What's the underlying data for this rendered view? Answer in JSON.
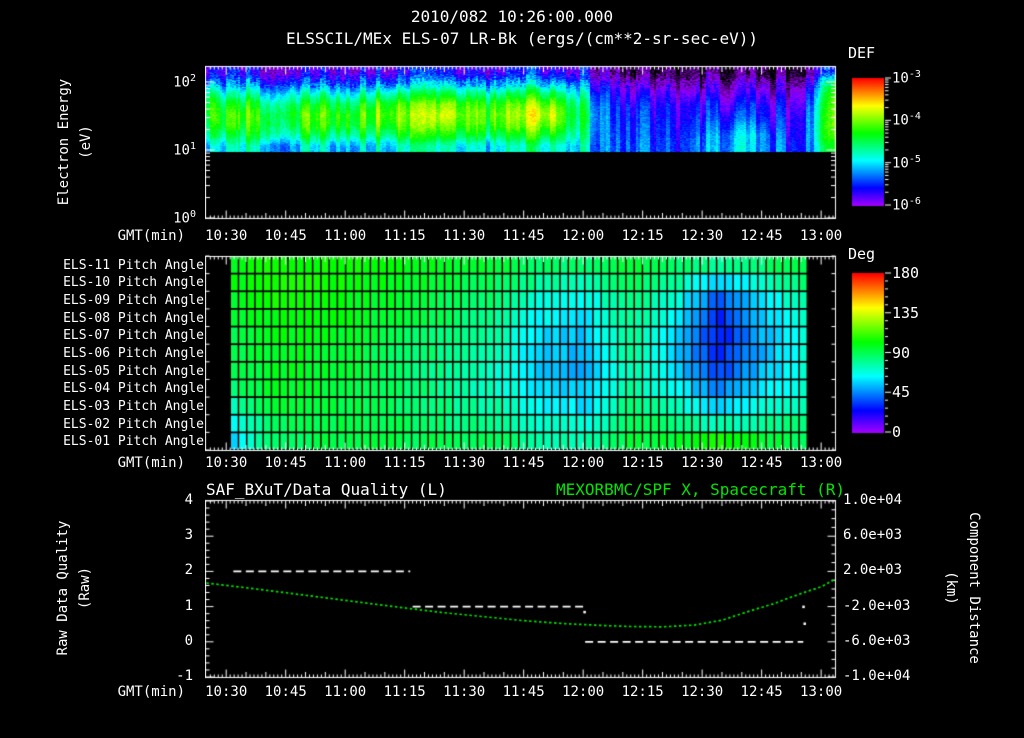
{
  "header": {
    "timestamp": "2010/082 10:26:00.000",
    "title": "ELSSCIL/MEx ELS-07 LR-Bk  (ergs/(cm**2-sr-sec-eV))"
  },
  "colors": {
    "background": "#000000",
    "text": "#ffffff",
    "accent_green": "#00e600"
  },
  "time_axis": {
    "label": "GMT(min)",
    "ticks": [
      "10:30",
      "10:45",
      "11:00",
      "11:15",
      "11:30",
      "11:45",
      "12:00",
      "12:15",
      "12:30",
      "12:45",
      "13:00"
    ],
    "tick_minutes": [
      30,
      45,
      60,
      75,
      90,
      105,
      120,
      135,
      150,
      165,
      180
    ],
    "range_minutes_after_10": [
      24.7,
      183.5
    ]
  },
  "panels": {
    "spectrogram": {
      "ylabel1": "Electron Energy",
      "ylabel2": "(eV)",
      "yticks": [
        {
          "mant": "10",
          "exp": "2"
        },
        {
          "mant": "10",
          "exp": "1"
        },
        {
          "mant": "10",
          "exp": "0"
        }
      ],
      "colorbar": {
        "title": "DEF",
        "labels": [
          {
            "mant": "10",
            "exp": "-3"
          },
          {
            "mant": "10",
            "exp": "-4"
          },
          {
            "mant": "10",
            "exp": "-5"
          },
          {
            "mant": "10",
            "exp": "-6"
          }
        ]
      }
    },
    "pitch": {
      "row_labels": [
        "ELS-11 Pitch Angle",
        "ELS-10 Pitch Angle",
        "ELS-09 Pitch Angle",
        "ELS-08 Pitch Angle",
        "ELS-07 Pitch Angle",
        "ELS-06 Pitch Angle",
        "ELS-05 Pitch Angle",
        "ELS-04 Pitch Angle",
        "ELS-03 Pitch Angle",
        "ELS-02 Pitch Angle",
        "ELS-01 Pitch Angle"
      ],
      "colorbar": {
        "title": "Deg",
        "labels": [
          "180",
          "135",
          "90",
          "45",
          "0"
        ]
      }
    },
    "quality": {
      "title_left": "SAF_BXuT/Data Quality (L)",
      "title_right": "MEXORBMC/SPF X, Spacecraft (R)",
      "ylabel1": "Raw Data Quality",
      "ylabel2": "(Raw)",
      "yticks_left": [
        "4",
        "3",
        "2",
        "1",
        "0",
        "-1"
      ],
      "ylabel_right1": "Component Distance",
      "ylabel_right2": "(km)",
      "yticks_right": [
        "1.0e+04",
        "6.0e+03",
        "2.0e+03",
        "-2.0e+03",
        "-6.0e+03",
        "-1.0e+04"
      ]
    }
  },
  "chart_data": [
    {
      "type": "heatmap",
      "name": "electron-energy-flux-spectrogram",
      "title": "ELSSCIL/MEx ELS-07 LR-Bk",
      "units": "ergs/(cm**2-sr-sec-eV)",
      "x_axis": "GMT minutes after 10:00",
      "x": [
        25,
        30.1,
        35.2,
        40.3,
        45.5,
        50.6,
        55.7,
        60.8,
        65.9,
        71.0,
        76.1,
        81.2,
        86.4,
        91.5,
        96.6,
        101.7,
        106.8,
        111.9,
        117.0,
        122.1,
        127.3,
        132.4,
        137.5,
        142.6,
        147.7,
        152.8,
        157.9,
        163.1,
        168.2,
        173.3,
        178.4,
        183.5
      ],
      "energy_bins_ev": [
        133,
        94,
        67,
        47,
        33,
        24,
        17,
        12
      ],
      "log10_def_range": [
        -6,
        -3
      ],
      "columns_log10_def": [
        [
          -5.8,
          -5.2,
          -4.6,
          -4.35,
          -4.3,
          -4.45,
          -4.7,
          -5.1
        ],
        [
          -5.7,
          -5.4,
          -4.9,
          -4.5,
          -4.3,
          -4.3,
          -4.6,
          -5.0
        ],
        [
          -5.8,
          -5.3,
          -4.8,
          -4.4,
          -4.2,
          -4.35,
          -4.55,
          -4.9
        ],
        [
          -5.9,
          -5.5,
          -5.0,
          -4.6,
          -4.35,
          -4.3,
          -4.5,
          -5.0
        ],
        [
          -5.7,
          -5.2,
          -4.7,
          -4.3,
          -4.15,
          -4.3,
          -4.6,
          -5.05
        ],
        [
          -5.8,
          -5.4,
          -4.9,
          -4.45,
          -4.2,
          -4.25,
          -4.5,
          -4.95
        ],
        [
          -5.75,
          -5.3,
          -4.75,
          -4.3,
          -4.1,
          -4.2,
          -4.55,
          -5.0
        ],
        [
          -5.85,
          -5.45,
          -4.95,
          -4.5,
          -4.25,
          -4.3,
          -4.6,
          -5.1
        ],
        [
          -5.7,
          -5.25,
          -4.7,
          -4.25,
          -4.05,
          -4.2,
          -4.5,
          -4.95
        ],
        [
          -5.75,
          -5.2,
          -4.6,
          -4.1,
          -3.95,
          -4.1,
          -4.45,
          -4.9
        ],
        [
          -5.85,
          -5.4,
          -4.85,
          -4.4,
          -4.2,
          -4.3,
          -4.55,
          -5.0
        ],
        [
          -5.7,
          -5.2,
          -4.65,
          -4.2,
          -4.0,
          -4.15,
          -4.5,
          -4.95
        ],
        [
          -5.75,
          -5.15,
          -4.55,
          -4.05,
          -3.85,
          -4.05,
          -4.4,
          -4.9
        ],
        [
          -5.8,
          -5.3,
          -4.7,
          -4.25,
          -4.1,
          -4.2,
          -4.5,
          -5.0
        ],
        [
          -5.7,
          -5.2,
          -4.6,
          -4.15,
          -4.0,
          -4.15,
          -4.45,
          -4.9
        ],
        [
          -5.75,
          -5.25,
          -4.65,
          -4.2,
          -4.05,
          -4.15,
          -4.5,
          -4.95
        ],
        [
          -5.7,
          -5.15,
          -4.55,
          -4.1,
          -3.9,
          -4.1,
          -4.4,
          -4.85
        ],
        [
          -5.8,
          -5.2,
          -4.6,
          -4.1,
          -3.85,
          -4.05,
          -4.45,
          -4.9
        ],
        [
          -5.85,
          -5.35,
          -4.85,
          -4.5,
          -4.4,
          -4.5,
          -4.7,
          -5.0
        ],
        [
          -5.95,
          -5.6,
          -5.3,
          -5.1,
          -5.0,
          -5.05,
          -5.1,
          -5.2
        ],
        [
          -6.3,
          -5.9,
          -5.7,
          -5.6,
          -5.55,
          -5.5,
          -5.45,
          -5.4
        ],
        [
          -6.4,
          -6.1,
          -5.9,
          -5.7,
          -5.6,
          -5.55,
          -5.5,
          -5.45
        ],
        [
          -6.5,
          -6.2,
          -5.9,
          -5.75,
          -5.65,
          -5.6,
          -5.55,
          -5.5
        ],
        [
          -6.3,
          -6.0,
          -5.8,
          -5.65,
          -5.6,
          -5.55,
          -5.5,
          -5.45
        ],
        [
          -6.5,
          -6.3,
          -6.0,
          -5.8,
          -5.7,
          -5.6,
          -5.5,
          -5.45
        ],
        [
          -6.35,
          -6.05,
          -5.85,
          -5.7,
          -5.6,
          -5.45,
          -5.3,
          -5.25
        ],
        [
          -6.45,
          -6.2,
          -5.95,
          -5.75,
          -5.55,
          -5.35,
          -5.15,
          -5.1
        ],
        [
          -6.3,
          -6.0,
          -5.8,
          -5.6,
          -5.5,
          -5.3,
          -5.1,
          -5.15
        ],
        [
          -6.4,
          -6.1,
          -5.9,
          -5.7,
          -5.6,
          -5.5,
          -5.35,
          -5.3
        ],
        [
          -6.3,
          -6.0,
          -5.85,
          -5.7,
          -5.6,
          -5.55,
          -5.5,
          -5.4
        ],
        [
          -6.0,
          -5.5,
          -5.3,
          -5.15,
          -5.05,
          -5.0,
          -5.0,
          -5.1
        ],
        [
          -5.4,
          -4.4,
          -4.05,
          -3.95,
          -3.9,
          -3.9,
          -4.0,
          -4.3
        ]
      ]
    },
    {
      "type": "heatmap",
      "name": "pitch-angle-by-sensor",
      "units": "degrees",
      "x_axis": "GMT minutes after 10:00",
      "x": [
        31,
        42.2,
        53.4,
        64.6,
        75.8,
        87.0,
        98.2,
        109.3,
        120.5,
        131.7,
        142.9,
        154.1,
        165.3,
        176.5
      ],
      "rows": [
        "ELS-11",
        "ELS-10",
        "ELS-09",
        "ELS-08",
        "ELS-07",
        "ELS-06",
        "ELS-05",
        "ELS-04",
        "ELS-03",
        "ELS-02",
        "ELS-01"
      ],
      "range_deg": [
        0,
        180
      ],
      "degrees": [
        [
          100,
          104,
          104,
          102,
          100,
          97,
          94,
          88,
          84,
          94,
          88,
          78,
          84,
          94
        ],
        [
          100,
          104,
          104,
          101,
          97,
          94,
          89,
          79,
          74,
          90,
          80,
          55,
          70,
          88
        ],
        [
          97,
          104,
          102,
          99,
          94,
          89,
          84,
          70,
          64,
          85,
          70,
          38,
          60,
          80
        ],
        [
          94,
          102,
          101,
          97,
          92,
          87,
          79,
          64,
          59,
          82,
          64,
          30,
          55,
          75
        ],
        [
          91,
          100,
          99,
          94,
          89,
          84,
          77,
          59,
          54,
          80,
          60,
          27,
          52,
          72
        ],
        [
          89,
          99,
          97,
          92,
          87,
          81,
          74,
          57,
          51,
          78,
          58,
          29,
          51,
          70
        ],
        [
          87,
          97,
          96,
          91,
          86,
          79,
          72,
          56,
          51,
          77,
          60,
          34,
          54,
          70
        ],
        [
          84,
          96,
          95,
          91,
          86,
          79,
          73,
          59,
          54,
          79,
          65,
          44,
          59,
          72
        ],
        [
          74,
          94,
          94,
          91,
          87,
          81,
          77,
          64,
          59,
          84,
          74,
          58,
          68,
          78
        ],
        [
          64,
          89,
          92,
          91,
          89,
          84,
          81,
          71,
          67,
          89,
          84,
          73,
          79,
          84
        ],
        [
          56,
          87,
          91,
          92,
          91,
          89,
          87,
          79,
          74,
          94,
          94,
          108,
          94,
          89
        ]
      ]
    },
    {
      "type": "line",
      "name": "data-quality-and-spacecraft-x",
      "x_axis": "GMT minutes after 10:00",
      "left_axis": {
        "label": "Raw Data Quality (Raw)",
        "range": [
          -1,
          4
        ]
      },
      "right_axis": {
        "label": "Component Distance (km)",
        "range": [
          -10000,
          10000
        ]
      },
      "series": [
        {
          "name": "SAF_BXuT/Data Quality",
          "axis": "left",
          "style": "dashed-white",
          "segments": [
            {
              "value": 2,
              "t_start": 31.8,
              "t_end": 76.4
            },
            {
              "value": 1,
              "t_start": 77.0,
              "t_end": 120.5
            },
            {
              "value": 0,
              "t_start": 120.5,
              "t_end": 175.5
            }
          ],
          "stray_points": [
            {
              "t": 120.3,
              "value": 0.85
            },
            {
              "t": 175.5,
              "value": 1.0
            },
            {
              "t": 175.8,
              "value": 0.52
            }
          ]
        },
        {
          "name": "MEXORBMC/SPF X",
          "axis": "right",
          "style": "dotted-green",
          "points": [
            [
              25,
              680
            ],
            [
              35,
              140
            ],
            [
              45,
              -420
            ],
            [
              55,
              -1000
            ],
            [
              65,
              -1580
            ],
            [
              75,
              -2150
            ],
            [
              85,
              -2700
            ],
            [
              95,
              -3150
            ],
            [
              105,
              -3600
            ],
            [
              115,
              -3930
            ],
            [
              125,
              -4150
            ],
            [
              132,
              -4260
            ],
            [
              140,
              -4300
            ],
            [
              148,
              -4100
            ],
            [
              155,
              -3550
            ],
            [
              162,
              -2500
            ],
            [
              168,
              -1680
            ],
            [
              172,
              -1000
            ],
            [
              176,
              -350
            ],
            [
              180,
              250
            ],
            [
              183.5,
              1100
            ]
          ]
        }
      ]
    }
  ]
}
